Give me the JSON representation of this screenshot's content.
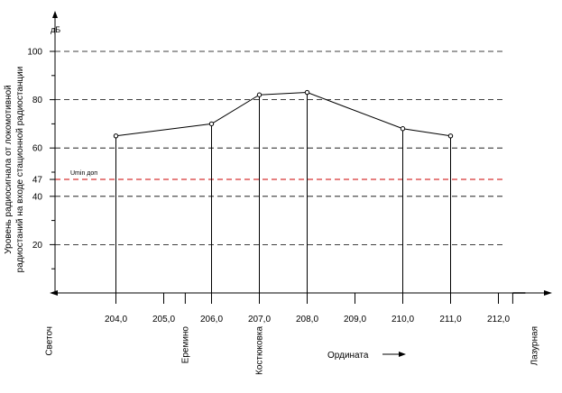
{
  "chart_data": {
    "type": "line",
    "title": "",
    "ylabel_line1": "Уровень радиосигнала от локомотивной",
    "ylabel_line2": "радиостаний на входе стационной радиостанции",
    "yunit": "дБ",
    "xlabel": "Ордината",
    "ylim": [
      0,
      100
    ],
    "xlim": [
      203.0,
      212.0
    ],
    "yticks": [
      20,
      40,
      47,
      60,
      80,
      100
    ],
    "ytick_labels": [
      "20",
      "40",
      "47",
      "60",
      "80",
      "100"
    ],
    "minor_yticks": [
      10,
      30,
      50,
      70,
      90
    ],
    "xticks": [
      204,
      205,
      206,
      207,
      208,
      209,
      210,
      211,
      212
    ],
    "xtick_labels": [
      "204,0",
      "205,0",
      "206,0",
      "207,0",
      "208,0",
      "209,0",
      "210,0",
      "211,0",
      "212,0"
    ],
    "dashed_gridlines": [
      20,
      40,
      60,
      80,
      100
    ],
    "threshold": {
      "value": 47,
      "label": "Umin доп",
      "color": "#cc0000"
    },
    "series": [
      {
        "x": [
          204.0,
          206.0,
          207.0,
          208.0,
          210.0,
          211.0
        ],
        "y": [
          65,
          70,
          82,
          83,
          68,
          65
        ]
      }
    ],
    "stations": [
      {
        "name": "Светоч",
        "x": 202.6
      },
      {
        "name": "Еремино",
        "x": 205.45
      },
      {
        "name": "Костюковка",
        "x": 207.0
      },
      {
        "name": "Лазурная",
        "x": 212.75
      }
    ],
    "station_ticks": [
      205.45,
      212.3
    ]
  }
}
